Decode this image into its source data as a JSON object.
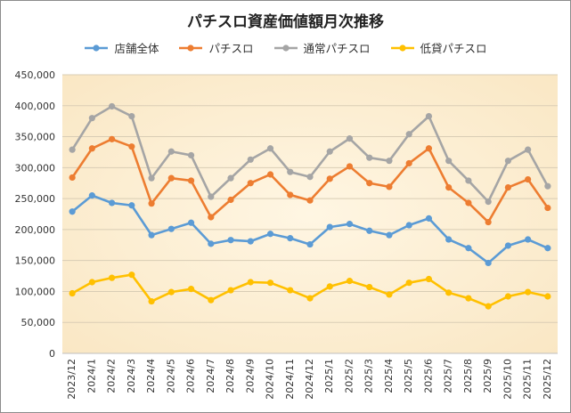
{
  "chart_data": {
    "type": "line",
    "title": "パチスロ資産価値額月次推移",
    "xlabel": "",
    "ylabel": "",
    "ylim": [
      0,
      450000
    ],
    "yticks": [
      0,
      50000,
      100000,
      150000,
      200000,
      250000,
      300000,
      350000,
      400000,
      450000
    ],
    "ytick_labels": [
      "0",
      "50,000",
      "100,000",
      "150,000",
      "200,000",
      "250,000",
      "300,000",
      "350,000",
      "400,000",
      "450,000"
    ],
    "grid": "horizontal",
    "legend": "top",
    "categories": [
      "2023/12",
      "2024/1",
      "2024/2",
      "2024/3",
      "2024/4",
      "2024/5",
      "2024/6",
      "2024/7",
      "2024/8",
      "2024/9",
      "2024/10",
      "2024/11",
      "2024/12",
      "2025/1",
      "2025/2",
      "2025/3",
      "2025/4",
      "2025/5",
      "2025/6",
      "2025/7",
      "2025/8",
      "2025/9",
      "2025/10",
      "2025/11",
      "2025/12"
    ],
    "series": [
      {
        "name": "店舗全体",
        "color": "#5b9bd5",
        "values": [
          229000,
          255000,
          243000,
          239000,
          191000,
          201000,
          211000,
          177000,
          183000,
          181000,
          193000,
          186000,
          176000,
          204000,
          209000,
          198000,
          191000,
          207000,
          218000,
          184000,
          170000,
          146000,
          174000,
          184000,
          170000
        ]
      },
      {
        "name": "パチスロ",
        "color": "#ed7d31",
        "values": [
          284000,
          331000,
          346000,
          334000,
          242000,
          283000,
          279000,
          220000,
          248000,
          275000,
          289000,
          256000,
          247000,
          282000,
          302000,
          275000,
          269000,
          307000,
          331000,
          268000,
          243000,
          212000,
          268000,
          281000,
          235000
        ]
      },
      {
        "name": "通常パチスロ",
        "color": "#a5a5a5",
        "values": [
          329000,
          380000,
          399000,
          383000,
          283000,
          326000,
          320000,
          253000,
          283000,
          313000,
          331000,
          293000,
          285000,
          326000,
          347000,
          316000,
          311000,
          354000,
          383000,
          311000,
          279000,
          245000,
          311000,
          329000,
          270000
        ]
      },
      {
        "name": "低貸パチスロ",
        "color": "#ffc000",
        "values": [
          97000,
          115000,
          122000,
          127000,
          84000,
          99000,
          104000,
          86000,
          102000,
          115000,
          114000,
          102000,
          89000,
          108000,
          117000,
          107000,
          95000,
          114000,
          120000,
          98000,
          89000,
          76000,
          92000,
          99000,
          92000
        ]
      }
    ]
  }
}
